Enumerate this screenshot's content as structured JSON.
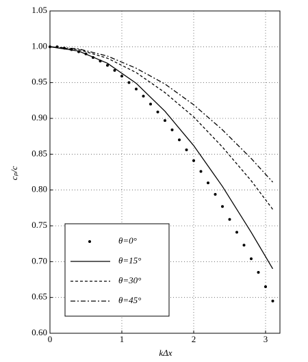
{
  "chart_data": {
    "type": "line",
    "xlabel": "kΔx",
    "ylabel": "cₚ/c",
    "xlim": [
      0,
      3.2
    ],
    "ylim": [
      0.6,
      1.05
    ],
    "xticks": [
      0,
      1,
      2,
      3
    ],
    "yticks": [
      {
        "value": 0.6,
        "label": "0.60"
      },
      0.65,
      {
        "value": 0.7,
        "label": "0.70"
      },
      0.75,
      {
        "value": 0.8,
        "label": "0.80"
      },
      0.85,
      {
        "value": 0.9,
        "label": "0.90"
      },
      0.95,
      {
        "value": 1.0,
        "label": "1.00"
      },
      1.05
    ],
    "grid": true,
    "legend": "lower left",
    "series": [
      {
        "name": "θ=0°",
        "color": "#000000",
        "style": "dots",
        "x": [
          0,
          0.1,
          0.2,
          0.3,
          0.4,
          0.5,
          0.6,
          0.7,
          0.8,
          0.9,
          1.0,
          1.1,
          1.2,
          1.3,
          1.4,
          1.5,
          1.6,
          1.7,
          1.8,
          1.9,
          2.0,
          2.1,
          2.2,
          2.3,
          2.4,
          2.5,
          2.6,
          2.7,
          2.8,
          2.9,
          3.0,
          3.1
        ],
        "values": [
          1.0,
          1.0,
          0.998,
          0.996,
          0.993,
          0.99,
          0.985,
          0.98,
          0.974,
          0.967,
          0.959,
          0.95,
          0.941,
          0.931,
          0.92,
          0.909,
          0.897,
          0.884,
          0.87,
          0.856,
          0.841,
          0.826,
          0.81,
          0.794,
          0.777,
          0.759,
          0.741,
          0.723,
          0.704,
          0.685,
          0.665,
          0.645
        ]
      },
      {
        "name": "θ=15°",
        "color": "#000000",
        "style": "solid",
        "x": [
          0,
          0.4,
          0.8,
          1.2,
          1.6,
          2.0,
          2.4,
          2.8,
          3.1
        ],
        "values": [
          1.0,
          0.994,
          0.977,
          0.949,
          0.91,
          0.862,
          0.805,
          0.741,
          0.69
        ]
      },
      {
        "name": "θ=30°",
        "color": "#000000",
        "style": "dashed",
        "x": [
          0,
          0.4,
          0.8,
          1.2,
          1.6,
          2.0,
          2.4,
          2.8,
          3.1
        ],
        "values": [
          1.0,
          0.996,
          0.984,
          0.964,
          0.936,
          0.902,
          0.86,
          0.813,
          0.773
        ]
      },
      {
        "name": "θ=45°",
        "color": "#000000",
        "style": "dashdot",
        "x": [
          0,
          0.4,
          0.8,
          1.2,
          1.6,
          2.0,
          2.4,
          2.8,
          3.1
        ],
        "values": [
          1.0,
          0.997,
          0.987,
          0.97,
          0.948,
          0.919,
          0.884,
          0.844,
          0.811
        ]
      }
    ]
  }
}
